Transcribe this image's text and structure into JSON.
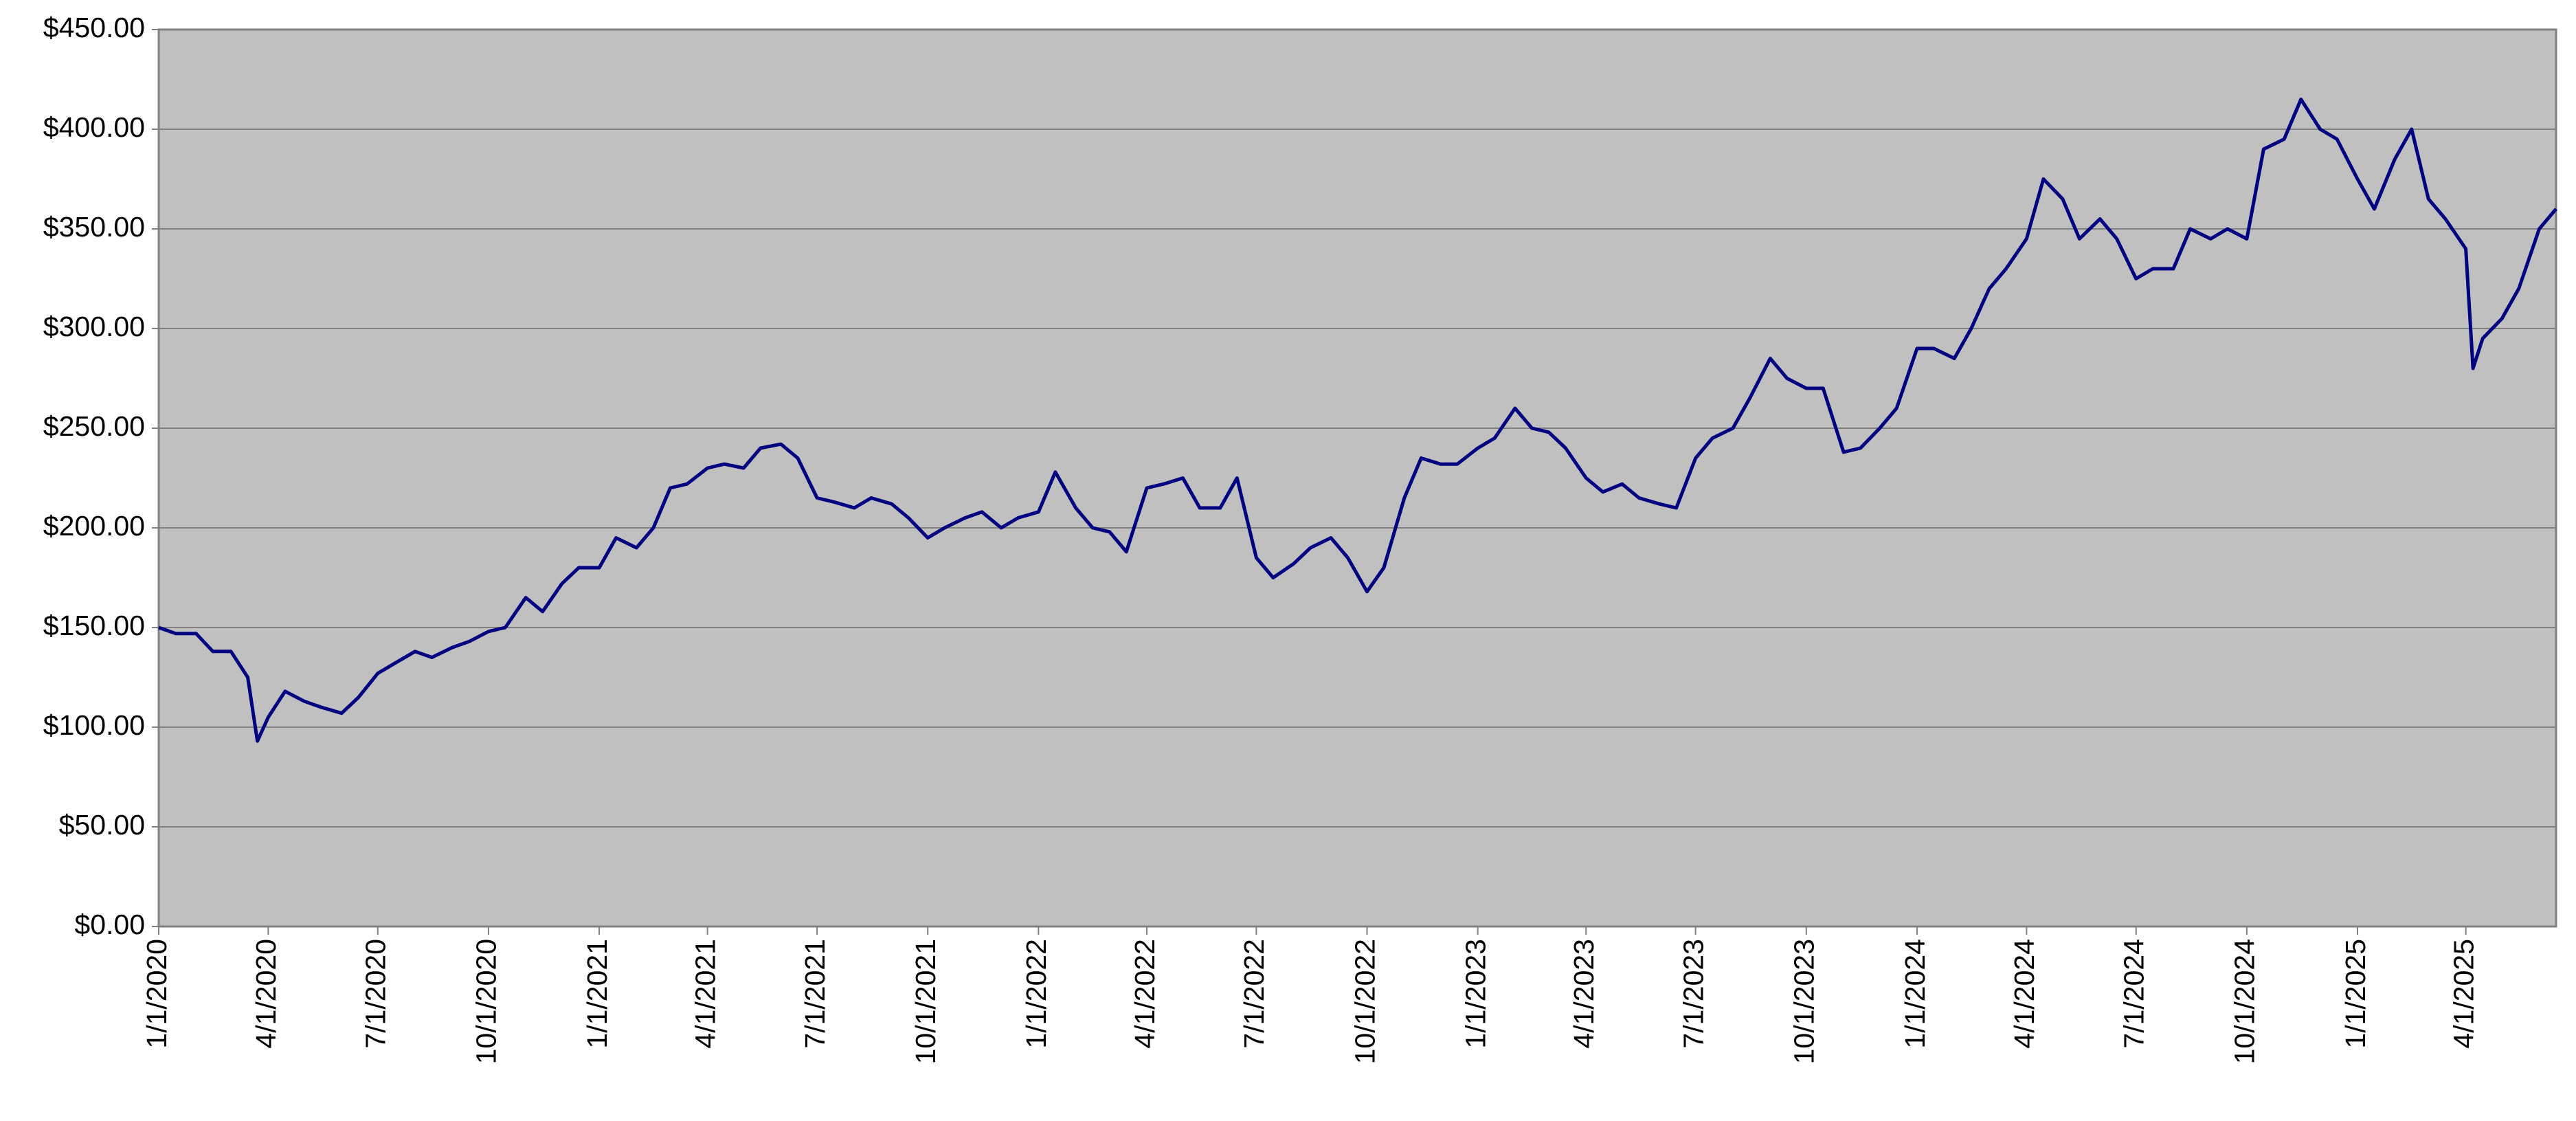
{
  "chart_data": {
    "type": "line",
    "x": [
      "2020-01-01",
      "2020-01-15",
      "2020-02-01",
      "2020-02-15",
      "2020-03-01",
      "2020-03-15",
      "2020-03-23",
      "2020-04-01",
      "2020-04-15",
      "2020-05-01",
      "2020-05-15",
      "2020-06-01",
      "2020-06-15",
      "2020-07-01",
      "2020-07-15",
      "2020-08-01",
      "2020-08-15",
      "2020-09-01",
      "2020-09-15",
      "2020-10-01",
      "2020-10-15",
      "2020-11-01",
      "2020-11-15",
      "2020-12-01",
      "2020-12-15",
      "2021-01-01",
      "2021-01-15",
      "2021-02-01",
      "2021-02-15",
      "2021-03-01",
      "2021-03-15",
      "2021-04-01",
      "2021-04-15",
      "2021-05-01",
      "2021-05-15",
      "2021-06-01",
      "2021-06-15",
      "2021-07-01",
      "2021-07-15",
      "2021-08-01",
      "2021-08-15",
      "2021-09-01",
      "2021-09-15",
      "2021-10-01",
      "2021-10-15",
      "2021-11-01",
      "2021-11-15",
      "2021-12-01",
      "2021-12-15",
      "2022-01-01",
      "2022-01-15",
      "2022-02-01",
      "2022-02-15",
      "2022-03-01",
      "2022-03-15",
      "2022-04-01",
      "2022-04-15",
      "2022-05-01",
      "2022-05-15",
      "2022-06-01",
      "2022-06-15",
      "2022-07-01",
      "2022-07-15",
      "2022-08-01",
      "2022-08-15",
      "2022-09-01",
      "2022-09-15",
      "2022-10-01",
      "2022-10-15",
      "2022-11-01",
      "2022-11-15",
      "2022-12-01",
      "2022-12-15",
      "2023-01-01",
      "2023-01-15",
      "2023-02-01",
      "2023-02-15",
      "2023-03-01",
      "2023-03-15",
      "2023-04-01",
      "2023-04-15",
      "2023-05-01",
      "2023-05-15",
      "2023-06-01",
      "2023-06-15",
      "2023-07-01",
      "2023-07-15",
      "2023-08-01",
      "2023-08-15",
      "2023-09-01",
      "2023-09-15",
      "2023-10-01",
      "2023-10-15",
      "2023-11-01",
      "2023-11-15",
      "2023-12-01",
      "2023-12-15",
      "2024-01-01",
      "2024-01-15",
      "2024-02-01",
      "2024-02-15",
      "2024-03-01",
      "2024-03-15",
      "2024-04-01",
      "2024-04-15",
      "2024-05-01",
      "2024-05-15",
      "2024-06-01",
      "2024-06-15",
      "2024-07-01",
      "2024-07-15",
      "2024-08-01",
      "2024-08-15",
      "2024-09-01",
      "2024-09-15",
      "2024-10-01",
      "2024-10-15",
      "2024-11-01",
      "2024-11-15",
      "2024-12-01",
      "2024-12-15",
      "2025-01-01",
      "2025-01-15",
      "2025-02-01",
      "2025-02-15",
      "2025-03-01",
      "2025-03-15",
      "2025-04-01",
      "2025-04-07",
      "2025-04-15",
      "2025-05-01",
      "2025-05-15",
      "2025-06-01",
      "2025-06-15"
    ],
    "series": [
      {
        "color": "#000080",
        "values": [
          150,
          147,
          147,
          138,
          138,
          125,
          93,
          105,
          118,
          113,
          110,
          107,
          115,
          127,
          132,
          138,
          135,
          140,
          143,
          148,
          150,
          165,
          158,
          172,
          180,
          180,
          195,
          190,
          200,
          220,
          222,
          230,
          232,
          230,
          240,
          242,
          235,
          215,
          213,
          210,
          215,
          212,
          205,
          195,
          200,
          205,
          208,
          200,
          205,
          208,
          228,
          210,
          200,
          198,
          188,
          220,
          222,
          225,
          210,
          210,
          225,
          185,
          175,
          182,
          190,
          195,
          185,
          168,
          180,
          215,
          235,
          232,
          232,
          240,
          245,
          260,
          250,
          248,
          240,
          225,
          218,
          222,
          215,
          212,
          210,
          235,
          245,
          250,
          265,
          285,
          275,
          270,
          270,
          238,
          240,
          250,
          260,
          290,
          290,
          285,
          300,
          320,
          330,
          345,
          375,
          365,
          345,
          355,
          345,
          325,
          330,
          330,
          350,
          345,
          350,
          345,
          390,
          395,
          415,
          400,
          395,
          375,
          360,
          385,
          400,
          365,
          355,
          340,
          280,
          295,
          305,
          320,
          350,
          360
        ]
      }
    ],
    "xlim": [
      "2020-01-01",
      "2025-06-15"
    ],
    "xticks": [
      {
        "value": "2020-01-01",
        "label": "1/1/2020"
      },
      {
        "value": "2020-04-01",
        "label": "4/1/2020"
      },
      {
        "value": "2020-07-01",
        "label": "7/1/2020"
      },
      {
        "value": "2020-10-01",
        "label": "10/1/2020"
      },
      {
        "value": "2021-01-01",
        "label": "1/1/2021"
      },
      {
        "value": "2021-04-01",
        "label": "4/1/2021"
      },
      {
        "value": "2021-07-01",
        "label": "7/1/2021"
      },
      {
        "value": "2021-10-01",
        "label": "10/1/2021"
      },
      {
        "value": "2022-01-01",
        "label": "1/1/2022"
      },
      {
        "value": "2022-04-01",
        "label": "4/1/2022"
      },
      {
        "value": "2022-07-01",
        "label": "7/1/2022"
      },
      {
        "value": "2022-10-01",
        "label": "10/1/2022"
      },
      {
        "value": "2023-01-01",
        "label": "1/1/2023"
      },
      {
        "value": "2023-04-01",
        "label": "4/1/2023"
      },
      {
        "value": "2023-07-01",
        "label": "7/1/2023"
      },
      {
        "value": "2023-10-01",
        "label": "10/1/2023"
      },
      {
        "value": "2024-01-01",
        "label": "1/1/2024"
      },
      {
        "value": "2024-04-01",
        "label": "4/1/2024"
      },
      {
        "value": "2024-07-01",
        "label": "7/1/2024"
      },
      {
        "value": "2024-10-01",
        "label": "10/1/2024"
      },
      {
        "value": "2025-01-01",
        "label": "1/1/2025"
      },
      {
        "value": "2025-04-01",
        "label": "4/1/2025"
      }
    ],
    "ylim": [
      0,
      450
    ],
    "yticks": [
      {
        "value": 0,
        "label": "$0.00"
      },
      {
        "value": 50,
        "label": "$50.00"
      },
      {
        "value": 100,
        "label": "$100.00"
      },
      {
        "value": 150,
        "label": "$150.00"
      },
      {
        "value": 200,
        "label": "$200.00"
      },
      {
        "value": 250,
        "label": "$250.00"
      },
      {
        "value": 300,
        "label": "$300.00"
      },
      {
        "value": 350,
        "label": "$350.00"
      },
      {
        "value": 400,
        "label": "$400.00"
      },
      {
        "value": 450,
        "label": "$450.00"
      }
    ],
    "grid": true
  }
}
